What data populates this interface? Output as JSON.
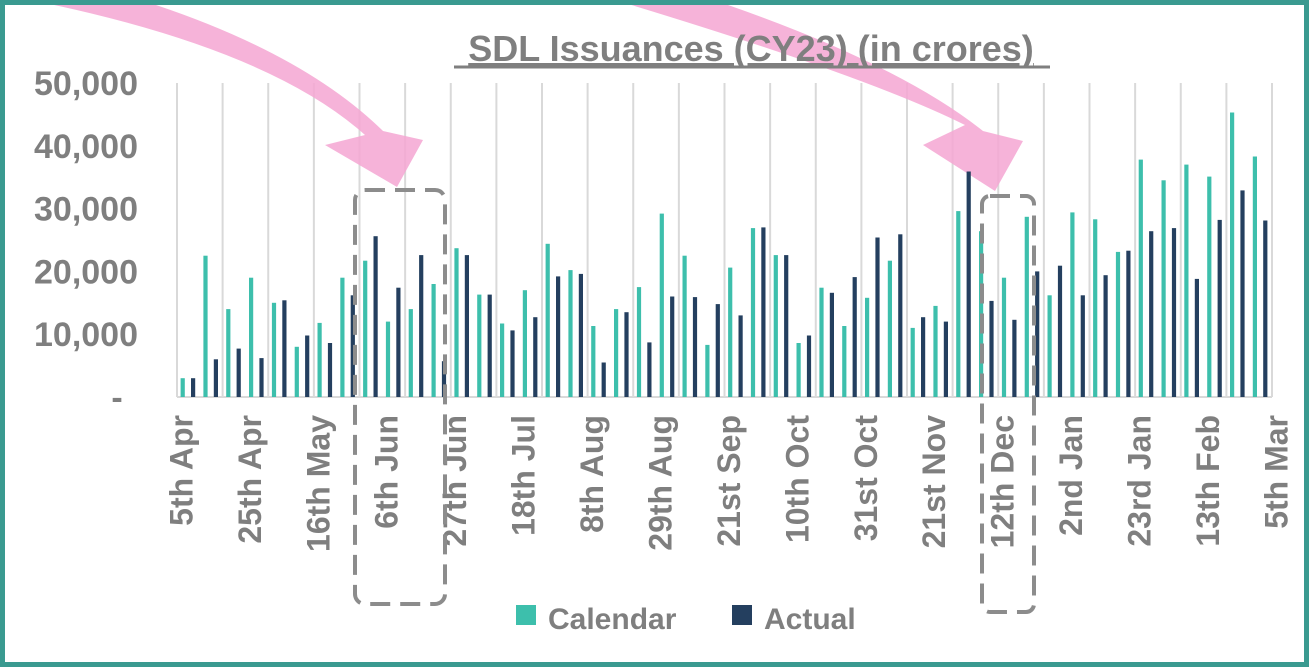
{
  "chart_data": {
    "type": "bar",
    "title": "SDL Issuances (CY23) (in crores)",
    "xlabel": "",
    "ylabel": "",
    "ylim": [
      0,
      50000
    ],
    "yticks": [
      {
        "value": 0,
        "label": "-"
      },
      {
        "value": 10000,
        "label": "10,000"
      },
      {
        "value": 20000,
        "label": "20,000"
      },
      {
        "value": 30000,
        "label": "30,000"
      },
      {
        "value": 40000,
        "label": "40,000"
      },
      {
        "value": 50000,
        "label": "50,000"
      }
    ],
    "x_tick_labels": [
      {
        "index": 0,
        "label": "5th Apr"
      },
      {
        "index": 3,
        "label": "25th Apr"
      },
      {
        "index": 6,
        "label": "16th May"
      },
      {
        "index": 9,
        "label": "6th Jun"
      },
      {
        "index": 12,
        "label": "27th Jun"
      },
      {
        "index": 15,
        "label": "18th Jul"
      },
      {
        "index": 18,
        "label": "8th Aug"
      },
      {
        "index": 21,
        "label": "29th Aug"
      },
      {
        "index": 24,
        "label": "21st Sep"
      },
      {
        "index": 27,
        "label": "10th Oct"
      },
      {
        "index": 30,
        "label": "31st Oct"
      },
      {
        "index": 33,
        "label": "21st Nov"
      },
      {
        "index": 36,
        "label": "12th Dec"
      },
      {
        "index": 39,
        "label": "2nd Jan"
      },
      {
        "index": 42,
        "label": "23rd Jan"
      },
      {
        "index": 45,
        "label": "13th Feb"
      },
      {
        "index": 48,
        "label": "5th Mar"
      }
    ],
    "series": [
      {
        "name": "Calendar",
        "color": "#3dbfac",
        "values": [
          3000,
          22500,
          14000,
          19000,
          15000,
          8000,
          11800,
          19000,
          21700,
          12000,
          14000,
          18000,
          23700,
          16300,
          11700,
          17000,
          24400,
          20200,
          11300,
          14000,
          17500,
          29200,
          22500,
          8300,
          20600,
          26900,
          22600,
          8600,
          17400,
          11300,
          15800,
          21700,
          11000,
          14500,
          29600,
          26400,
          19000,
          28700,
          16200,
          29400,
          28300,
          23100,
          37800,
          34500,
          37000,
          35100,
          45300,
          38300
        ]
      },
      {
        "name": "Actual",
        "color": "#243f5f",
        "values": [
          3000,
          6000,
          7700,
          6200,
          15400,
          9800,
          8600,
          16200,
          25600,
          17400,
          22600,
          5700,
          22600,
          16300,
          10600,
          12700,
          19200,
          19600,
          5500,
          13500,
          8700,
          16000,
          15900,
          14800,
          13000,
          27000,
          22600,
          9800,
          16600,
          19100,
          25400,
          25900,
          12700,
          12000,
          35900,
          15300,
          12300,
          20000,
          20900,
          16200,
          19400,
          23300,
          26400,
          26900,
          18800,
          28200,
          32900,
          28100
        ]
      }
    ],
    "legend_position": "bottom",
    "grid": "vertical",
    "annotations": [
      "arrow pointing to 6th Jun",
      "dashed box around 6th Jun",
      "arrow pointing to 12th Dec",
      "dashed box around 12th Dec"
    ]
  }
}
